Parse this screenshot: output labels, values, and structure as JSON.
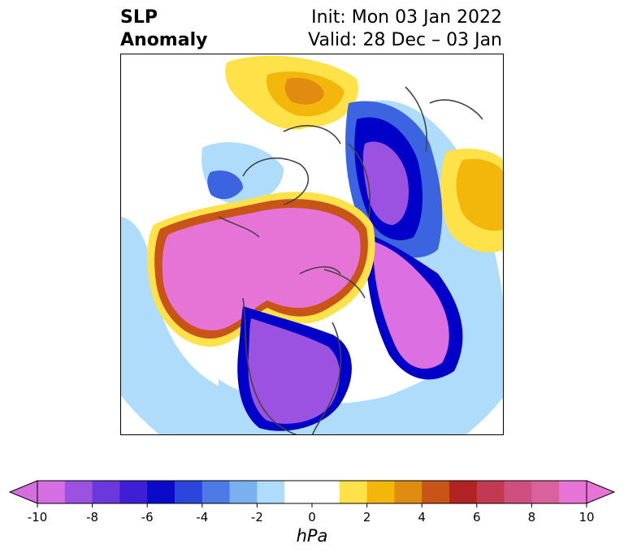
{
  "title": {
    "left_line1": "SLP",
    "left_line2": "Anomaly",
    "right_line1": "Init: Mon 03 Jan 2022",
    "right_line2": "Valid: 28 Dec – 03 Jan"
  },
  "colorbar": {
    "unit": "hPa",
    "ticks": [
      "-10",
      "-8",
      "-6",
      "-4",
      "-2",
      "0",
      "2",
      "4",
      "6",
      "8",
      "10"
    ],
    "colors": [
      "#d56ee0",
      "#9c52e0",
      "#6a38dc",
      "#3f1fd6",
      "#0a0ac8",
      "#2a46dc",
      "#4d7ae6",
      "#7ab0f0",
      "#aedcfa",
      "#ffffff",
      "#ffffff",
      "#ffe24a",
      "#f3b60a",
      "#df8c10",
      "#c85418",
      "#b22424",
      "#c23a52",
      "#cf5080",
      "#d8619e",
      "#e674d6"
    ],
    "extend_low_color": "#d56ee0",
    "extend_high_color": "#e674d6"
  },
  "palette": {
    "neg_extreme": "#dc70e2",
    "neg_strong": "#0000c8",
    "neg_mid": "#3c64e0",
    "neg_weak": "#aedcfa",
    "pos_weak": "#ffe24a",
    "pos_mid": "#f3b60a",
    "pos_strong": "#c85418",
    "pos_extreme": "#e674d6",
    "coast": "#444444"
  }
}
